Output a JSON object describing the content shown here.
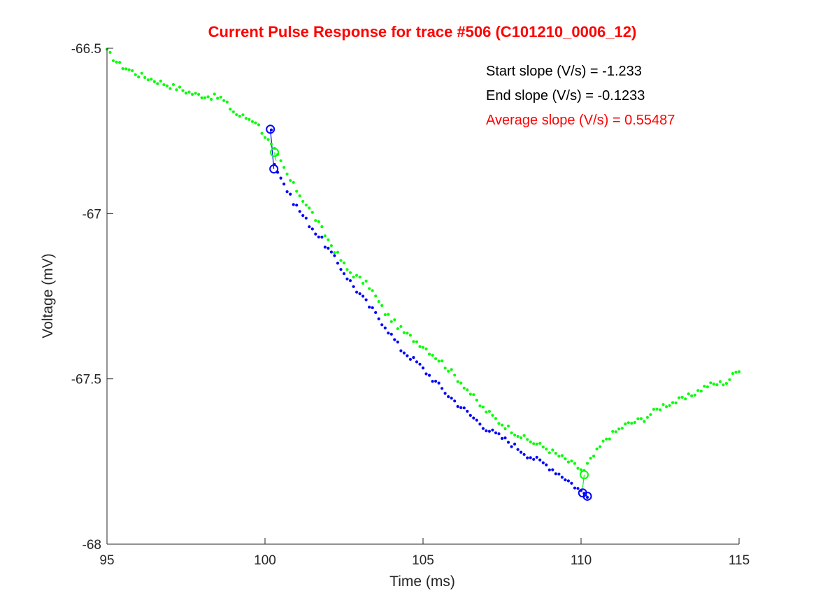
{
  "chart_data": {
    "type": "scatter",
    "title": "Current Pulse Response for trace #506 (C101210_0006_12)",
    "xlabel": "Time (ms)",
    "ylabel": "Voltage (mV)",
    "xlim": [
      95,
      115
    ],
    "ylim": [
      -68,
      -66.5
    ],
    "x_ticks": [
      95,
      100,
      105,
      110,
      115
    ],
    "y_ticks": [
      -68,
      -67.5,
      -67,
      -66.5
    ],
    "x_tick_labels": [
      "95",
      "100",
      "105",
      "110",
      "115"
    ],
    "y_tick_labels": [
      "-68",
      "-67.5",
      "-67",
      "-66.5"
    ],
    "grid": false,
    "annotations": [
      {
        "text": "Start slope (V/s) = -1.233",
        "color": "#000000"
      },
      {
        "text": "End slope (V/s) = -0.1233",
        "color": "#000000"
      },
      {
        "text": "Average slope (V/s) = 0.55487",
        "color": "#ff0000"
      }
    ],
    "series": [
      {
        "color": "#00ff00",
        "marker": "dot",
        "anchors": [
          [
            95.0,
            -66.51
          ],
          [
            95.4,
            -66.55
          ],
          [
            96.0,
            -66.58
          ],
          [
            96.6,
            -66.6
          ],
          [
            97.2,
            -66.62
          ],
          [
            97.8,
            -66.64
          ],
          [
            98.6,
            -66.65
          ],
          [
            99.1,
            -66.7
          ],
          [
            99.7,
            -66.72
          ],
          [
            100.3,
            -66.81
          ],
          [
            100.8,
            -66.9
          ],
          [
            101.5,
            -67.0
          ],
          [
            102.0,
            -67.08
          ],
          [
            102.6,
            -67.17
          ],
          [
            103.3,
            -67.22
          ],
          [
            103.8,
            -67.3
          ],
          [
            104.4,
            -67.36
          ],
          [
            105.0,
            -67.4
          ],
          [
            105.6,
            -67.45
          ],
          [
            106.3,
            -67.52
          ],
          [
            106.8,
            -67.58
          ],
          [
            107.4,
            -67.63
          ],
          [
            108.2,
            -67.68
          ],
          [
            108.9,
            -67.71
          ],
          [
            109.6,
            -67.75
          ],
          [
            110.1,
            -67.78
          ],
          [
            110.2,
            -67.76
          ],
          [
            110.5,
            -67.72
          ],
          [
            110.8,
            -67.68
          ],
          [
            111.4,
            -67.64
          ],
          [
            112.0,
            -67.62
          ],
          [
            112.6,
            -67.58
          ],
          [
            113.3,
            -67.56
          ],
          [
            114.0,
            -67.52
          ],
          [
            114.6,
            -67.51
          ],
          [
            115.0,
            -67.47
          ]
        ]
      },
      {
        "color": "#0000ff",
        "marker": "dot",
        "anchors": [
          [
            100.2,
            -66.74
          ],
          [
            100.3,
            -66.85
          ],
          [
            100.8,
            -66.95
          ],
          [
            101.3,
            -67.02
          ],
          [
            101.8,
            -67.08
          ],
          [
            102.3,
            -67.15
          ],
          [
            102.8,
            -67.22
          ],
          [
            103.3,
            -67.28
          ],
          [
            103.8,
            -67.34
          ],
          [
            104.3,
            -67.41
          ],
          [
            104.8,
            -67.45
          ],
          [
            105.3,
            -67.5
          ],
          [
            105.8,
            -67.55
          ],
          [
            106.5,
            -67.61
          ],
          [
            107.0,
            -67.65
          ],
          [
            107.7,
            -67.69
          ],
          [
            108.3,
            -67.73
          ],
          [
            108.9,
            -67.76
          ],
          [
            109.5,
            -67.8
          ],
          [
            110.0,
            -67.84
          ],
          [
            110.2,
            -67.85
          ]
        ]
      }
    ],
    "markers": [
      {
        "x": 100.17,
        "y": -66.745,
        "style": "circle",
        "color": "#0000ff"
      },
      {
        "x": 100.28,
        "y": -66.865,
        "style": "circle",
        "color": "#0000ff"
      },
      {
        "x": 100.3,
        "y": -66.815,
        "style": "circle",
        "color": "#00ff00"
      },
      {
        "x": 110.05,
        "y": -67.845,
        "style": "circle",
        "color": "#0000ff"
      },
      {
        "x": 110.2,
        "y": -67.855,
        "style": "circle",
        "color": "#0000ff"
      },
      {
        "x": 110.1,
        "y": -67.79,
        "style": "circle",
        "color": "#00ff00"
      }
    ],
    "segments": [
      {
        "from": [
          100.17,
          -66.745
        ],
        "to": [
          100.28,
          -66.865
        ],
        "color": "#0000ff"
      },
      {
        "from": [
          110.05,
          -67.845
        ],
        "to": [
          110.2,
          -67.855
        ],
        "color": "#0000ff"
      },
      {
        "from": [
          100.3,
          -66.815
        ],
        "to": [
          100.35,
          -66.84
        ],
        "color": "#00ff00"
      },
      {
        "from": [
          110.1,
          -67.79
        ],
        "to": [
          110.05,
          -67.83
        ],
        "color": "#00ff00"
      }
    ]
  }
}
